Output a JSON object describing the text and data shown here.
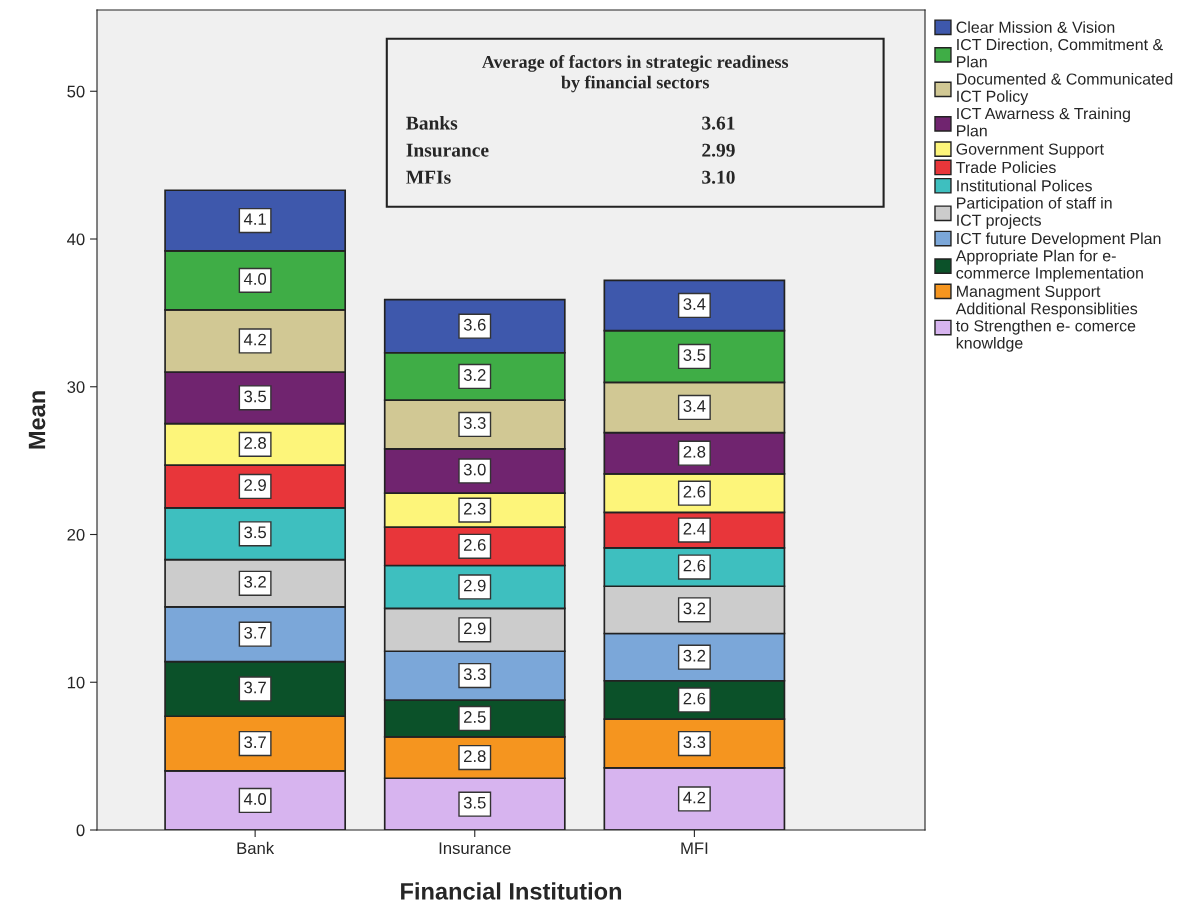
{
  "chart_data": {
    "type": "bar",
    "stacked": true,
    "xlabel": "Financial Institution",
    "ylabel": "Mean",
    "categories": [
      "Bank",
      "Insurance",
      "MFI"
    ],
    "ylim": [
      0,
      55.5
    ],
    "yticks": [
      0,
      10,
      20,
      30,
      40,
      50
    ],
    "grid": false,
    "legend": "right",
    "series": [
      {
        "name": "Additional Responsiblities to Strengthen e- comerce knowldge",
        "color": "#d7b4ef",
        "values": [
          4.0,
          3.5,
          4.2
        ],
        "value_labels": [
          "4.0",
          "3.5",
          "4.2"
        ]
      },
      {
        "name": "Managment Support",
        "color": "#f5951f",
        "values": [
          3.7,
          2.8,
          3.3
        ],
        "value_labels": [
          "3.7",
          "2.8",
          "3.3"
        ]
      },
      {
        "name": "Appropriate Plan for e- commerce Implementation",
        "color": "#0b5129",
        "values": [
          3.7,
          2.5,
          2.6
        ],
        "value_labels": [
          "3.7",
          "2.5",
          "2.6"
        ]
      },
      {
        "name": "ICT future Development Plan",
        "color": "#7ba7d9",
        "values": [
          3.7,
          3.3,
          3.2
        ],
        "value_labels": [
          "3.7",
          "3.3",
          "3.2"
        ]
      },
      {
        "name": "Participation of staff in ICT projects",
        "color": "#cccccc",
        "values": [
          3.2,
          2.9,
          3.2
        ],
        "value_labels": [
          "3.2",
          "2.9",
          "3.2"
        ]
      },
      {
        "name": "Institutional Polices",
        "color": "#3ebfbf",
        "values": [
          3.5,
          2.9,
          2.6
        ],
        "value_labels": [
          "3.5",
          "2.9",
          "2.6"
        ]
      },
      {
        "name": "Trade Policies",
        "color": "#e8363a",
        "values": [
          2.9,
          2.6,
          2.4
        ],
        "value_labels": [
          "2.9",
          "2.6",
          "2.4"
        ]
      },
      {
        "name": "Government Support",
        "color": "#fdf57a",
        "values": [
          2.8,
          2.3,
          2.6
        ],
        "value_labels": [
          "2.8",
          "2.3",
          "2.6"
        ]
      },
      {
        "name": "ICT Awarness & Training Plan",
        "color": "#70246f",
        "values": [
          3.5,
          3.0,
          2.8
        ],
        "value_labels": [
          "3.5",
          "3.0",
          "2.8"
        ]
      },
      {
        "name": "Documented & Communicated ICT Policy",
        "color": "#d1c894",
        "values": [
          4.2,
          3.3,
          3.4
        ],
        "value_labels": [
          "4.2",
          "3.3",
          "3.4"
        ]
      },
      {
        "name": "ICT Direction, Commitment & Plan",
        "color": "#3fad46",
        "values": [
          4.0,
          3.2,
          3.5
        ],
        "value_labels": [
          "4.0",
          "3.2",
          "3.5"
        ]
      },
      {
        "name": "Clear Mission & Vision",
        "color": "#3e58ac",
        "values": [
          4.1,
          3.6,
          3.4
        ],
        "value_labels": [
          "4.1",
          "3.6",
          "3.4"
        ]
      }
    ],
    "annotations": [
      "Average of factors in strategic readiness\nby financial sectors",
      "Banks",
      "3.61",
      "Insurance",
      "2.99",
      "MFIs",
      "3.10"
    ]
  }
}
